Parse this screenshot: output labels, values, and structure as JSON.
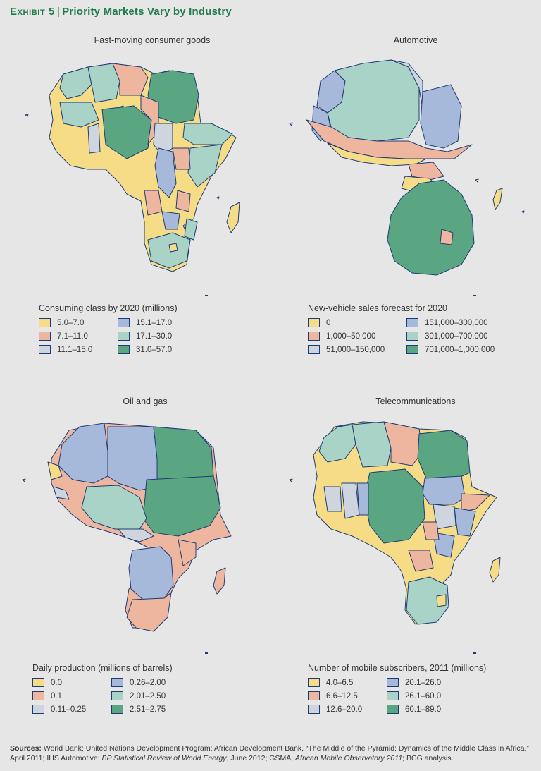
{
  "exhibit": {
    "label": "Exhibit 5",
    "title": "Priority Markets Vary by Industry"
  },
  "colors": {
    "yellow": "#f6dc86",
    "salmon": "#eeb69f",
    "gray": "#cfd5de",
    "blue": "#a7b9db",
    "ltgreen": "#a8d3c6",
    "dkgreen": "#5aa682",
    "outline": "#1d3c73"
  },
  "panels": [
    {
      "title": "Fast-moving consumer goods",
      "legend_title": "Consuming class by 2020 (millions)",
      "legend": [
        {
          "label": "5.0–7.0",
          "color": "#f6dc86"
        },
        {
          "label": "7.1–11.0",
          "color": "#eeb69f"
        },
        {
          "label": "11.1–15.0",
          "color": "#cfd5de"
        },
        {
          "label": "15.1–17.0",
          "color": "#a7b9db"
        },
        {
          "label": "17.1–30.0",
          "color": "#a8d3c6"
        },
        {
          "label": "31.0–57.0",
          "color": "#5aa682"
        }
      ]
    },
    {
      "title": "Automotive",
      "legend_title": "New-vehicle sales forecast for 2020",
      "legend": [
        {
          "label": "0",
          "color": "#f6dc86"
        },
        {
          "label": "1,000–50,000",
          "color": "#eeb69f"
        },
        {
          "label": "51,000–150,000",
          "color": "#cfd5de"
        },
        {
          "label": "151,000–300,000",
          "color": "#a7b9db"
        },
        {
          "label": "301,000–700,000",
          "color": "#a8d3c6"
        },
        {
          "label": "701,000–1,000,000",
          "color": "#5aa682"
        }
      ]
    },
    {
      "title": "Oil and gas",
      "legend_title": "Daily production (millions of barrels)",
      "legend": [
        {
          "label": "0.0",
          "color": "#f6dc86"
        },
        {
          "label": "0.1",
          "color": "#eeb69f"
        },
        {
          "label": "0.11–0.25",
          "color": "#cfd5de"
        },
        {
          "label": "0.26–2.00",
          "color": "#a7b9db"
        },
        {
          "label": "2.01–2.50",
          "color": "#a8d3c6"
        },
        {
          "label": "2.51–2.75",
          "color": "#5aa682"
        }
      ]
    },
    {
      "title": "Telecommunications",
      "legend_title": "Number of mobile subscribers, 2011 (millions)",
      "legend": [
        {
          "label": "4.0–6.5",
          "color": "#f6dc86"
        },
        {
          "label": "6.6–12.5",
          "color": "#eeb69f"
        },
        {
          "label": "12.6–20.0",
          "color": "#cfd5de"
        },
        {
          "label": "20.1–26.0",
          "color": "#a7b9db"
        },
        {
          "label": "26.1–60.0",
          "color": "#a8d3c6"
        },
        {
          "label": "60.1–89.0",
          "color": "#5aa682"
        }
      ]
    }
  ],
  "sources": {
    "label": "Sources:",
    "text_1": " World Bank; United Nations Development Program; African Development Bank, “The Middle of the Pyramid: Dynamics of the Middle Class in Africa,” April 2011; IHS Automotive; ",
    "italic_1": "BP Statistical Review of World Energy",
    "text_2": ", June 2012; GSMA, ",
    "italic_2": "African Mobile Observatory 2011",
    "text_3": "; BCG analysis."
  }
}
